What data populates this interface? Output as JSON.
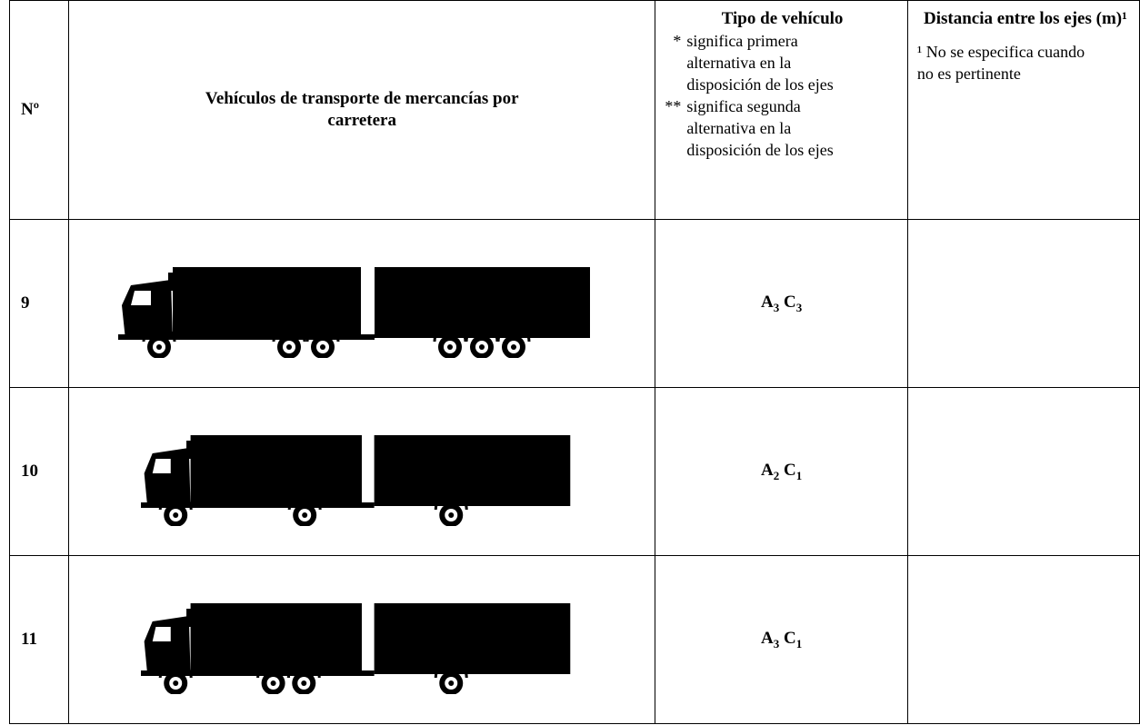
{
  "header": {
    "number": "Nº",
    "vehicles": "Vehículos de transporte de mercancías por carretera",
    "type": {
      "title": "Tipo de vehículo",
      "notes": [
        {
          "marker": "*",
          "text": "significa primera alternativa en la disposición de los ejes"
        },
        {
          "marker": "**",
          "text": "significa segunda alternativa en la disposición de los ejes"
        }
      ]
    },
    "distance": {
      "title": "Distancia entre los ejes (m)¹",
      "note": "¹ No se especifica cuando no es pertinente"
    }
  },
  "rows": [
    {
      "number": "9",
      "type": [
        {
          "letter": "A",
          "sub": "3"
        },
        {
          "letter": "C",
          "sub": "3"
        }
      ]
    },
    {
      "number": "10",
      "type": [
        {
          "letter": "A",
          "sub": "2"
        },
        {
          "letter": "C",
          "sub": "1"
        }
      ]
    },
    {
      "number": "11",
      "type": [
        {
          "letter": "A",
          "sub": "3"
        },
        {
          "letter": "C",
          "sub": "1"
        }
      ]
    }
  ]
}
